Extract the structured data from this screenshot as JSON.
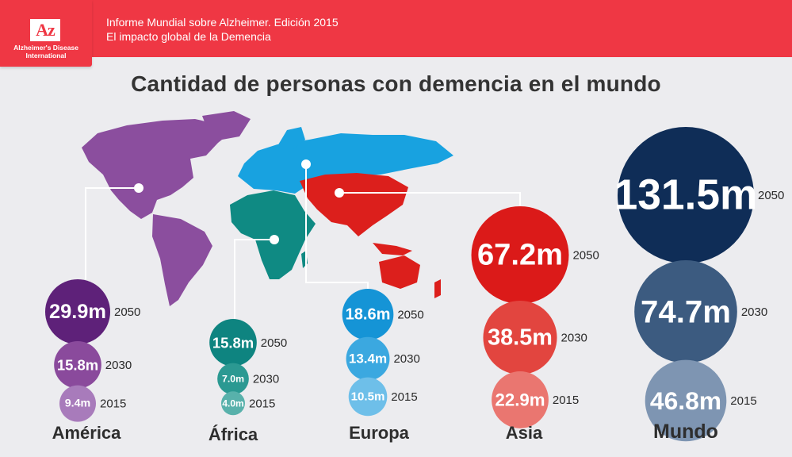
{
  "header": {
    "logo_text": "Az",
    "org_name_line1": "Alzheimer's Disease",
    "org_name_line2": "International",
    "line1": "Informe Mundial sobre Alzheimer. Edición 2015",
    "line2": "El impacto global de la Demencia"
  },
  "title": "Cantidad de personas con demencia en el mundo",
  "chart_data": {
    "type": "bubble",
    "title": "Cantidad de personas con demencia en el mundo",
    "unit": "m",
    "years": [
      "2050",
      "2030",
      "2015"
    ],
    "regions": [
      {
        "name": "América",
        "color": "#5e2179",
        "values": {
          "2050": 29.9,
          "2030": 15.8,
          "2015": 9.4
        },
        "labels": {
          "2050": "29.9m",
          "2030": "15.8m",
          "2015": "9.4m"
        }
      },
      {
        "name": "África",
        "color": "#0e8480",
        "values": {
          "2050": 15.8,
          "2030": 7.0,
          "2015": 4.0
        },
        "labels": {
          "2050": "15.8m",
          "2030": "7.0m",
          "2015": "4.0m"
        }
      },
      {
        "name": "Europa",
        "color": "#1594d6",
        "values": {
          "2050": 18.6,
          "2030": 13.4,
          "2015": 10.5
        },
        "labels": {
          "2050": "18.6m",
          "2030": "13.4m",
          "2015": "10.5m"
        }
      },
      {
        "name": "Asia",
        "color": "#db1a19",
        "values": {
          "2050": 67.2,
          "2030": 38.5,
          "2015": 22.9
        },
        "labels": {
          "2050": "67.2m",
          "2030": "38.5m",
          "2015": "22.9m"
        }
      },
      {
        "name": "Mundo",
        "color": "#0f2d57",
        "values": {
          "2050": 131.5,
          "2030": 74.7,
          "2015": 46.8
        },
        "labels": {
          "2050": "131.5m",
          "2030": "74.7m",
          "2015": "46.8m"
        }
      }
    ]
  },
  "colors": {
    "header_red": "#ef3744",
    "america": "#8b4e9e",
    "africa": "#0f8a83",
    "europa": "#18a2e0",
    "asia": "#dc1f1c",
    "mundo": "#0f2d57"
  }
}
